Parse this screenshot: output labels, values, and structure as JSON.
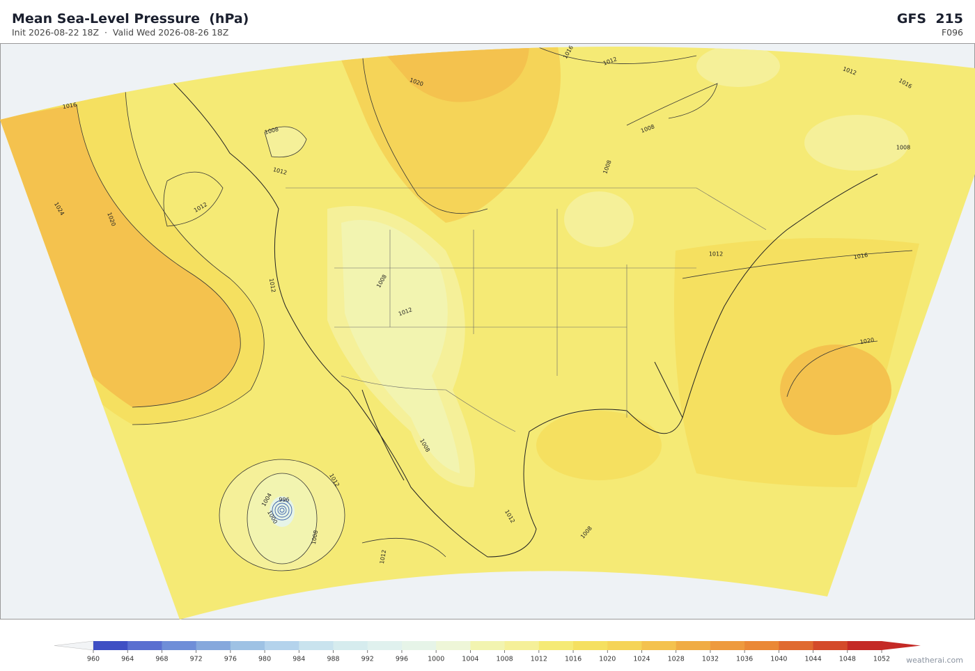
{
  "header": {
    "title": "Mean Sea-Level Pressure  (hPa)",
    "subtitle": "Init 2026-08-22 18Z  ·  Valid Wed 2026-08-26 18Z",
    "model": "GFS  215",
    "forecast_hour": "F096"
  },
  "map": {
    "contour_labels": [
      "1016",
      "1024",
      "1020",
      "1012",
      "1008",
      "1012",
      "1020",
      "1016",
      "1012",
      "1012",
      "1008",
      "1008",
      "1008",
      "1012",
      "1016",
      "1012",
      "1008",
      "1012",
      "1004",
      "996",
      "1000",
      "1008",
      "1012",
      "1012",
      "1012",
      "1020",
      "1016",
      "1008",
      "1008"
    ]
  },
  "colorbar": {
    "ticks": [
      960,
      964,
      968,
      972,
      976,
      980,
      984,
      988,
      992,
      996,
      1000,
      1004,
      1008,
      1012,
      1016,
      1020,
      1024,
      1028,
      1032,
      1036,
      1040,
      1044,
      1048,
      1052
    ],
    "colors": [
      "#3f4fc4",
      "#5a6fd0",
      "#6f8ed8",
      "#86a8dc",
      "#9ec2e4",
      "#b4d3ec",
      "#c9e3ee",
      "#d6ecee",
      "#e0f1ee",
      "#e6f4e8",
      "#eef6d8",
      "#f2f4b0",
      "#f5f099",
      "#f5ea75",
      "#f5e060",
      "#f5d458",
      "#f4c24e",
      "#f0ac44",
      "#ee9a3e",
      "#ea8836",
      "#e06a30",
      "#d44a2a",
      "#c42a26"
    ],
    "under_color": "#f2f4f6",
    "over_color": "#c42a26"
  },
  "footer": {
    "credit": "weatherai.com"
  }
}
